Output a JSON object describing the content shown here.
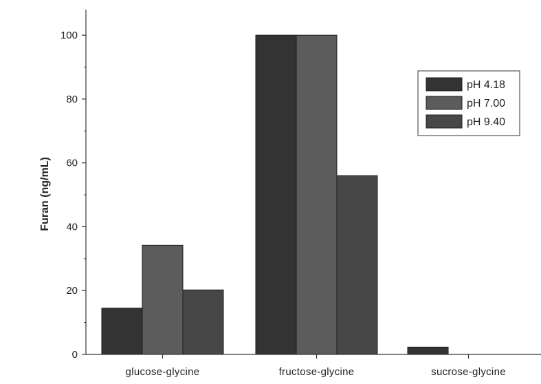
{
  "chart_data": {
    "type": "bar",
    "title": "",
    "xlabel": "",
    "ylabel": "Furan (ng/mL)",
    "categories": [
      "glucose-glycine",
      "fructose-glycine",
      "sucrose-glycine"
    ],
    "series": [
      {
        "name": "pH 4.18",
        "color": "#333333",
        "values": [
          14.5,
          100,
          2.3
        ]
      },
      {
        "name": "pH 7.00",
        "color": "#5c5c5c",
        "values": [
          34.2,
          100,
          0
        ]
      },
      {
        "name": "pH 9.40",
        "color": "#474747",
        "values": [
          20.2,
          56,
          0
        ]
      }
    ],
    "ylim": [
      0,
      108
    ],
    "yticks": [
      0,
      20,
      40,
      60,
      80,
      100
    ],
    "ytick_labels": [
      "0",
      "20",
      "40",
      "60",
      "80",
      "100"
    ],
    "grid": false,
    "legend_position": "top-right"
  }
}
